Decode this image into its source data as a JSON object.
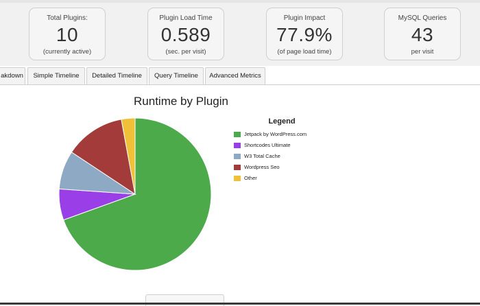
{
  "stats": [
    {
      "label": "Total Plugins:",
      "value": "10",
      "sub": "(currently active)"
    },
    {
      "label": "Plugin Load Time",
      "value": "0.589",
      "sub": "(sec. per visit)"
    },
    {
      "label": "Plugin Impact",
      "value": "77.9%",
      "sub": "(of page load time)"
    },
    {
      "label": "MySQL Queries",
      "value": "43",
      "sub": "per visit"
    }
  ],
  "tabs": [
    "akdown",
    "Simple Timeline",
    "Detailed Timeline",
    "Query Timeline",
    "Advanced Metrics"
  ],
  "chart": {
    "title": "Runtime by Plugin"
  },
  "legend": {
    "title": "Legend"
  },
  "chart_data": {
    "type": "pie",
    "title": "Runtime by Plugin",
    "legend_title": "Legend",
    "legend_position": "right",
    "series": [
      {
        "name": "Jetpack by WordPress.com",
        "value": 69.5,
        "color": "#4caa4a"
      },
      {
        "name": "Shortcodes Ultimate",
        "value": 6.6,
        "color": "#9a3fe8"
      },
      {
        "name": "W3 Total Cache",
        "value": 8.2,
        "color": "#8ea9c4"
      },
      {
        "name": "Wordpress Seo",
        "value": 12.8,
        "color": "#a33b3b"
      },
      {
        "name": "Other",
        "value": 2.9,
        "color": "#f0c039"
      }
    ]
  }
}
